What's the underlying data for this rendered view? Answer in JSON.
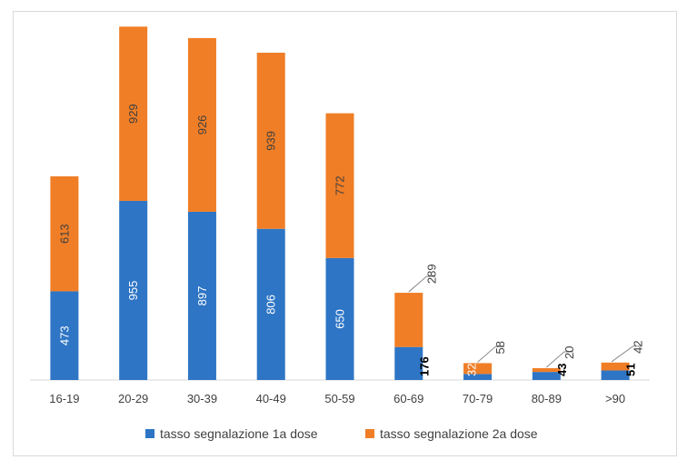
{
  "chart_data": {
    "type": "bar",
    "stacked": true,
    "orientation": "vertical",
    "categories": [
      "16-19",
      "20-29",
      "30-39",
      "40-49",
      "50-59",
      "60-69",
      "70-79",
      "80-89",
      ">90"
    ],
    "series": [
      {
        "name": "tasso segnalazione 1a dose",
        "color": "#2e75c5",
        "values": [
          473,
          955,
          897,
          806,
          650,
          176,
          32,
          43,
          51
        ],
        "labels": [
          "473",
          "955",
          "897",
          "806",
          "650",
          "176",
          "32",
          "43",
          "51"
        ]
      },
      {
        "name": "tasso segnalazione 2a dose",
        "color": "#f07e26",
        "values": [
          613,
          929,
          926,
          939,
          772,
          289,
          58,
          20,
          42
        ],
        "labels": [
          "613",
          "929",
          "926",
          "939",
          "772",
          "289",
          "58",
          "20",
          "42"
        ]
      }
    ],
    "ylim": [
      0,
      1900
    ],
    "legend_position": "bottom",
    "grid": false,
    "title": "",
    "xlabel": "",
    "ylabel": ""
  }
}
